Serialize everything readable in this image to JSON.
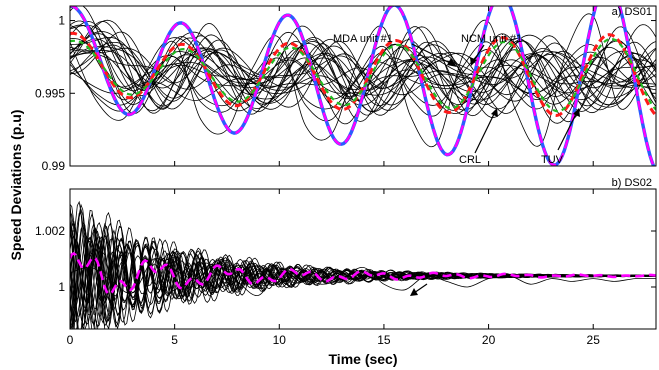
{
  "chart_data": [
    {
      "type": "line",
      "panel_label": "a) DS01",
      "xlim": [
        0,
        28
      ],
      "ylim": [
        0.99,
        1.001
      ],
      "x_ticks": [
        0,
        5,
        10,
        15,
        20,
        25
      ],
      "y_ticks": [
        {
          "value": 0.99,
          "label": "0.99"
        },
        {
          "value": 0.995,
          "label": "0.995"
        },
        {
          "value": 1.0,
          "label": "1"
        }
      ],
      "grid": false,
      "annotations": [
        "MDA unit #1",
        "NCM unit #1",
        "CRL",
        "TUV"
      ],
      "colors": {
        "ensemble": "#000000",
        "magenta": "#ff00ff",
        "blue": "#2a5cff",
        "red": "#ff1a1a",
        "green": "#22bb22"
      },
      "series": [
        {
          "x": [
            0,
            1.25,
            2.5,
            3.75,
            5,
            6.25,
            7.5,
            8.75,
            10,
            11.25,
            12.5,
            13.75,
            15,
            16.25,
            17.5,
            18.75,
            20,
            21.25,
            22.5,
            23.75,
            25,
            26.25,
            27.5
          ],
          "values": [
            0.9985,
            0.9945,
            0.9932,
            0.9962,
            0.9985,
            0.9932,
            0.9925,
            0.9968,
            0.9988,
            0.9928,
            0.9922,
            0.9972,
            0.9995,
            0.9935,
            0.9915,
            0.9975,
            0.9999,
            0.994,
            0.9915,
            0.998,
            1.0003,
            0.994,
            0.9963
          ]
        },
        {
          "x": [
            0,
            1.25,
            2.5,
            3.75,
            5,
            6.25,
            7.5,
            8.75,
            10,
            11.25,
            12.5,
            13.75,
            15,
            16.25,
            17.5,
            18.75,
            20,
            21.25,
            22.5,
            23.75,
            25,
            26.25,
            27.5
          ],
          "values": [
            0.9972,
            0.9948,
            0.9938,
            0.9958,
            0.9975,
            0.9944,
            0.9938,
            0.9962,
            0.9978,
            0.9942,
            0.9932,
            0.9962,
            0.9982,
            0.9948,
            0.9935,
            0.9968,
            0.9985,
            0.9952,
            0.994,
            0.9972,
            0.9983,
            0.9955,
            0.9968
          ]
        },
        {
          "x": [
            0,
            1.25,
            2.5,
            3.75,
            5,
            6.25,
            7.5,
            8.75,
            10,
            11.25,
            12.5,
            13.75,
            15,
            16.25,
            17.5,
            18.75,
            20,
            21.25,
            22.5,
            23.75,
            25,
            26.25,
            27.5
          ],
          "values": [
            0.997,
            0.995,
            0.9942,
            0.9956,
            0.997,
            0.9948,
            0.9942,
            0.996,
            0.9974,
            0.9946,
            0.994,
            0.996,
            0.9978,
            0.9952,
            0.9942,
            0.9964,
            0.998,
            0.9956,
            0.9946,
            0.9968,
            0.9978,
            0.9958,
            0.9966
          ]
        },
        {
          "x": [
            0,
            2,
            4,
            6,
            8,
            10,
            12,
            14,
            16,
            18,
            20,
            22,
            24,
            26,
            27.5
          ],
          "values": [
            0.9965,
            0.995,
            0.9958,
            0.9945,
            0.996,
            0.9952,
            0.9962,
            0.9948,
            0.9966,
            0.9955,
            0.9968,
            0.995,
            0.9962,
            0.9955,
            0.996
          ]
        }
      ]
    },
    {
      "type": "line",
      "panel_label": "b) DS02",
      "xlim": [
        0,
        28
      ],
      "ylim": [
        0.9985,
        1.0035
      ],
      "x_ticks": [
        0,
        5,
        10,
        15,
        20,
        25
      ],
      "x_tick_labels": [
        "0",
        "5",
        "10",
        "15",
        "20",
        "25"
      ],
      "y_ticks": [
        {
          "value": 1.0,
          "label": "1"
        },
        {
          "value": 1.002,
          "label": "1.002"
        }
      ],
      "grid": false,
      "xlabel": "Time (sec)",
      "ylabel": "Speed Deviations (p.u)",
      "colors": {
        "ensemble": "#000000",
        "magenta": "#ff00ff"
      },
      "series": [
        {
          "x": [
            0,
            1,
            2,
            3,
            4,
            5,
            6,
            7,
            8,
            9,
            10,
            11,
            12,
            13,
            14,
            15,
            16,
            17,
            18,
            19,
            20,
            21,
            22,
            23,
            24,
            25,
            26,
            27,
            28
          ],
          "values": [
            1.0005,
            1.0007,
            1.0002,
            0.9998,
            1.001,
            1.0006,
            1.0003,
            1.0008,
            1.0002,
            0.9997,
            1.0006,
            1.0004,
            1.0001,
            1.0003,
            1.0007,
            1.0001,
            0.9999,
            1.0004,
            1.0002,
            1.0,
            1.0003,
            1.0004,
            1.0001,
            1.0003,
            1.0002,
            1.0003,
            1.0002,
            1.0003,
            1.0003
          ]
        }
      ]
    }
  ]
}
